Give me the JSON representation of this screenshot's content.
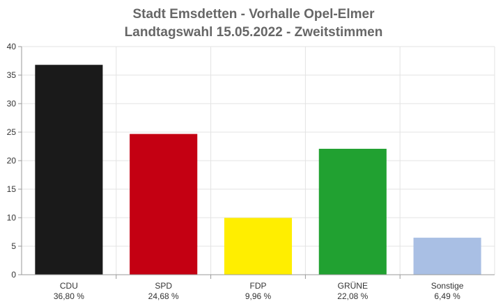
{
  "chart_data": {
    "type": "bar",
    "title_lines": [
      "Stadt Emsdetten - Vorhalle Opel-Elmer",
      "Landtagswahl 15.05.2022  - Zweitstimmen"
    ],
    "categories": [
      "CDU",
      "SPD",
      "FDP",
      "GRÜNE",
      "Sonstige"
    ],
    "value_labels": [
      "36,80 %",
      "24,68 %",
      "9,96 %",
      "22,08 %",
      "6,49 %"
    ],
    "values": [
      36.8,
      24.68,
      9.96,
      22.08,
      6.49
    ],
    "colors": [
      "#1a1a1a",
      "#c40012",
      "#ffee00",
      "#21a131",
      "#a9bfe4"
    ],
    "yticks": [
      0,
      5,
      10,
      15,
      20,
      25,
      30,
      35,
      40
    ],
    "ylim": [
      0,
      40
    ],
    "grid": true,
    "legend": "none"
  }
}
